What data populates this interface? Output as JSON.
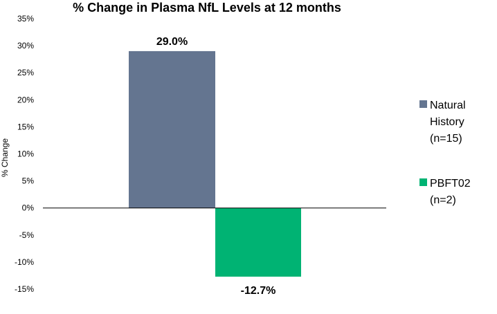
{
  "chart_data": {
    "type": "bar",
    "title": "% Change in Plasma NfL Levels at 12 months",
    "ylabel": "% Change",
    "xlabel": "",
    "ylim": [
      -15,
      35
    ],
    "ytick_step": 5,
    "ytick_labels": [
      "35%",
      "30%",
      "25%",
      "20%",
      "15%",
      "10%",
      "5%",
      "0%",
      "-5%",
      "-10%",
      "-15%"
    ],
    "grid": false,
    "legend_position": "right",
    "series": [
      {
        "name": "Natural History (n=15)",
        "legend_lines": [
          "Natural",
          "History",
          "(n=15)"
        ],
        "value": 29.0,
        "label": "29.0%",
        "color": "#647590"
      },
      {
        "name": "PBFT02 (n=2)",
        "legend_lines": [
          "PBFT02",
          "(n=2)"
        ],
        "value": -12.7,
        "label": "-12.7%",
        "color": "#00b373"
      }
    ]
  }
}
